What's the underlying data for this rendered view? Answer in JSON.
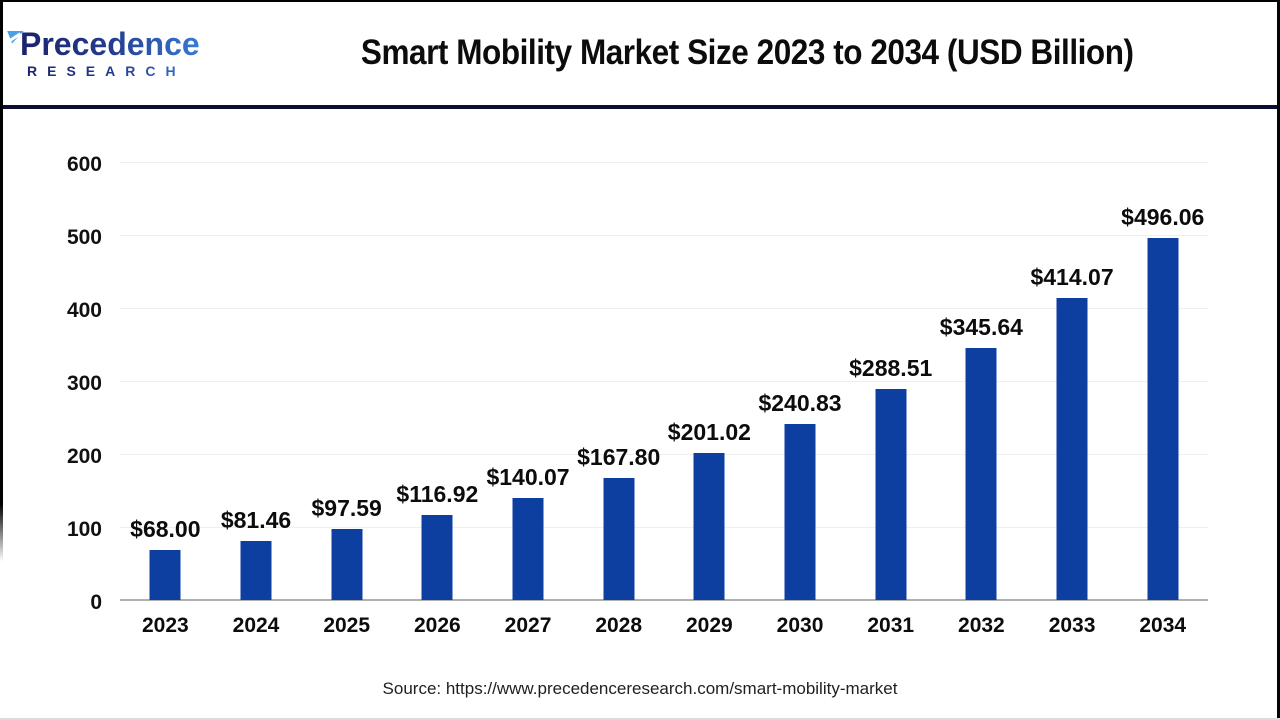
{
  "header": {
    "logo": {
      "brand": "Precedence",
      "subname": "RESEARCH"
    },
    "title": "Smart Mobility Market Size 2023 to 2034 (USD Billion)"
  },
  "chart_data": {
    "type": "bar",
    "title": "Smart Mobility Market Size 2023 to 2034 (USD Billion)",
    "categories": [
      "2023",
      "2024",
      "2025",
      "2026",
      "2027",
      "2028",
      "2029",
      "2030",
      "2031",
      "2032",
      "2033",
      "2034"
    ],
    "values": [
      68.0,
      81.46,
      97.59,
      116.92,
      140.07,
      167.8,
      201.02,
      240.83,
      288.51,
      345.64,
      414.07,
      496.06
    ],
    "bar_labels": [
      "$68.00",
      "$81.46",
      "$97.59",
      "$116.92",
      "$140.07",
      "$167.80",
      "$201.02",
      "$240.83",
      "$288.51",
      "$345.64",
      "$414.07",
      "$496.06"
    ],
    "unit": "USD Billion",
    "xlabel": "",
    "ylabel": "",
    "ylim": [
      0,
      600
    ],
    "yticks": [
      0,
      100,
      200,
      300,
      400,
      500,
      600
    ],
    "grid": true,
    "legend": false,
    "bar_color": "#0d3fa0"
  },
  "footer": {
    "source": "Source: https://www.precedenceresearch.com/smart-mobility-market"
  },
  "colors": {
    "bar": "#0d3fa0",
    "divider": "#0d0d33",
    "gridline": "#efefef",
    "axis_line": "#b0b0b0",
    "logo_dark": "#1b246b",
    "logo_light": "#3b85e0"
  }
}
